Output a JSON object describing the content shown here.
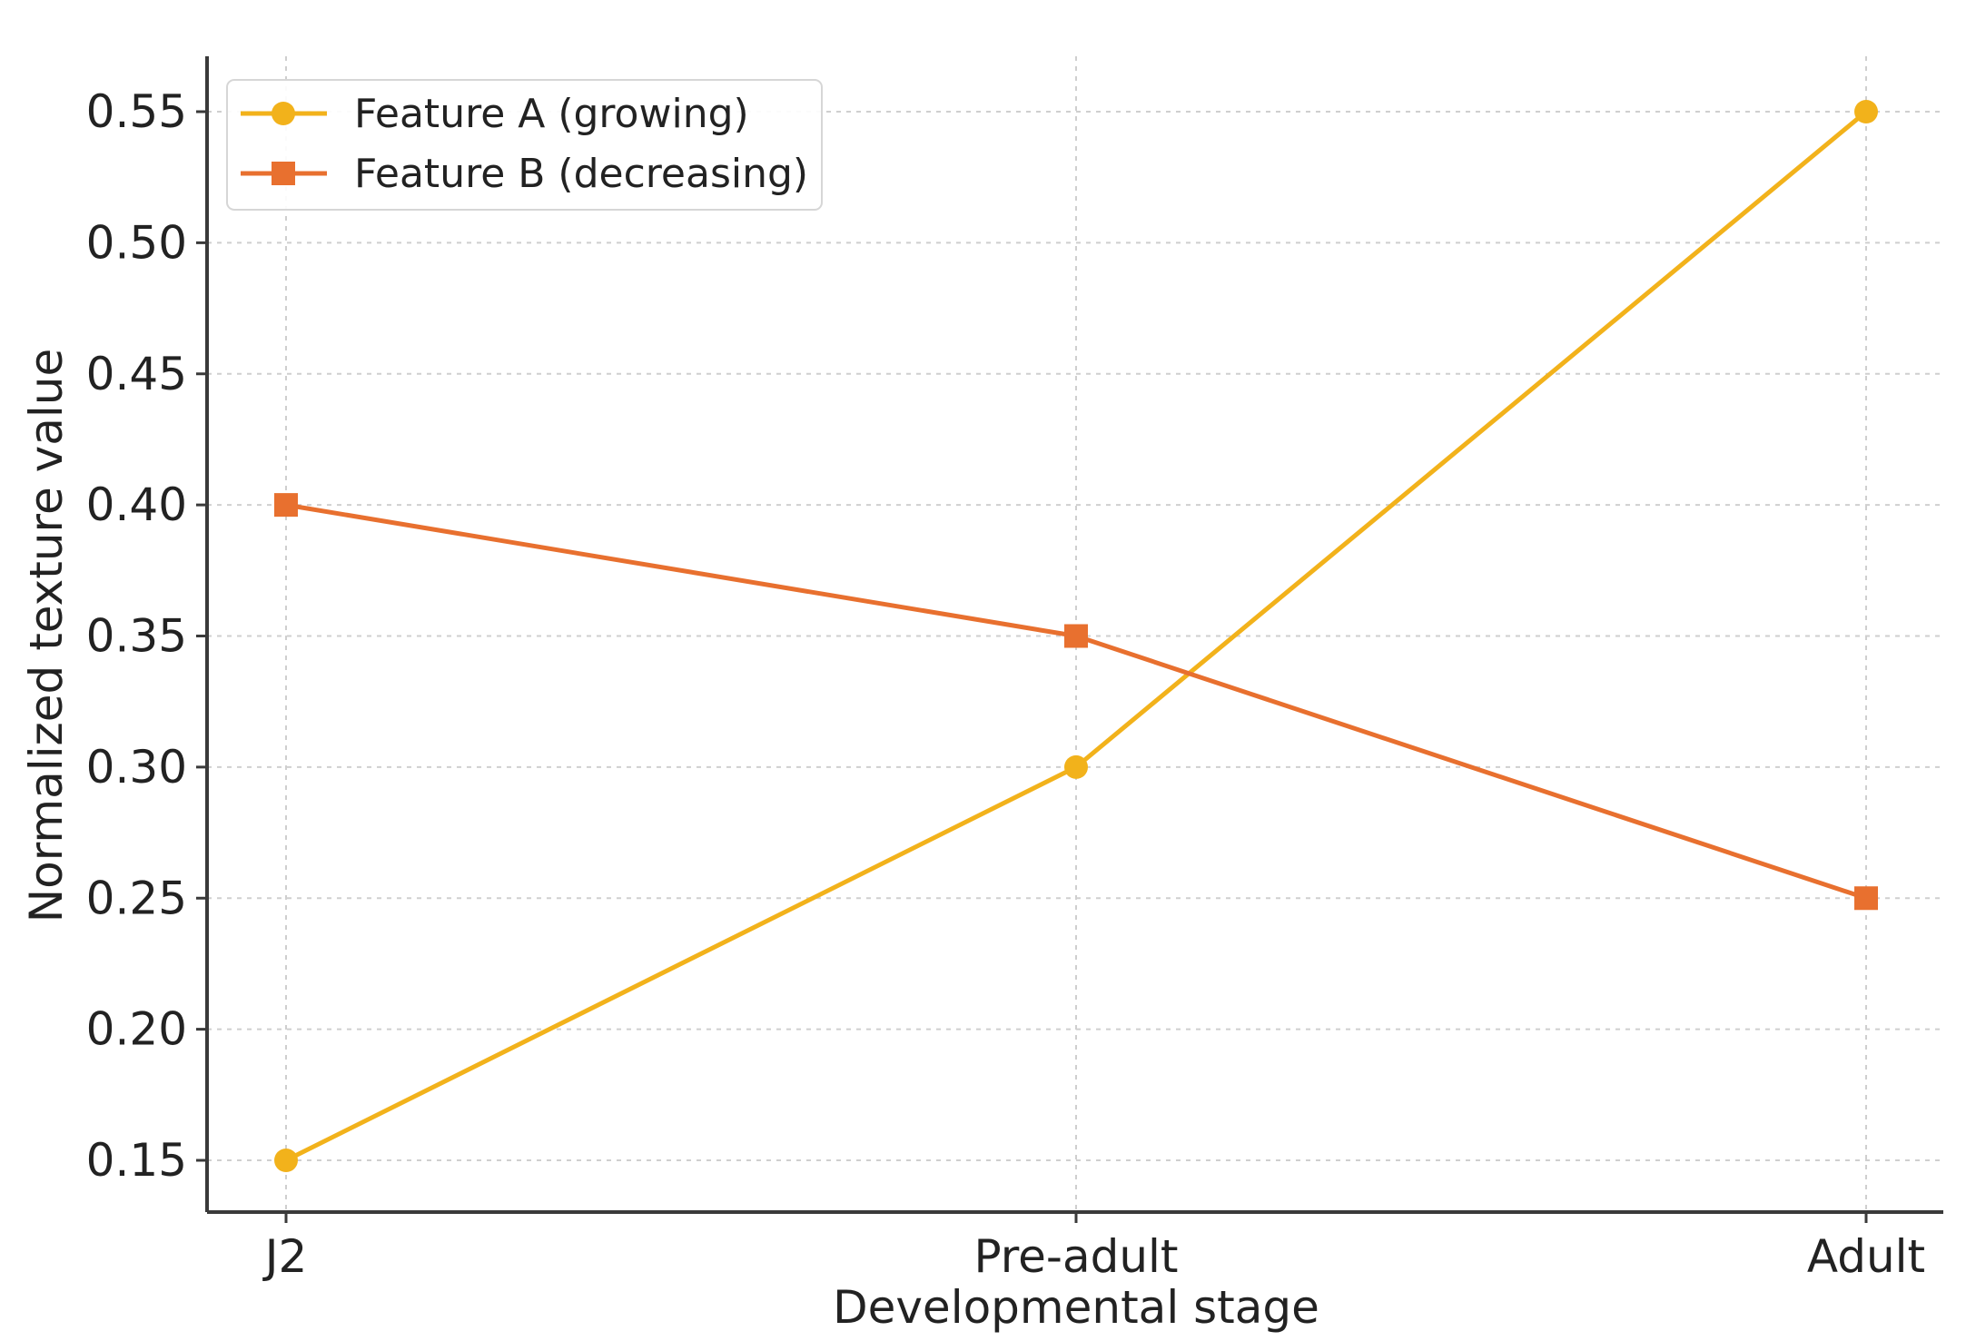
{
  "chart_data": {
    "type": "line",
    "title": "",
    "xlabel": "Developmental stage",
    "ylabel": "Normalized texture value",
    "categories": [
      "J2",
      "Pre-adult",
      "Adult"
    ],
    "ylim": [
      0.13,
      0.57
    ],
    "yticks": [
      0.15,
      0.2,
      0.25,
      0.3,
      0.35,
      0.4,
      0.45,
      0.5,
      0.55
    ],
    "ytick_labels": [
      "0.15",
      "0.20",
      "0.25",
      "0.30",
      "0.35",
      "0.40",
      "0.45",
      "0.50",
      "0.55"
    ],
    "grid": true,
    "legend_position": "top-left",
    "series": [
      {
        "name": "Feature A (growing)",
        "values": [
          0.15,
          0.3,
          0.55
        ],
        "color": "#F2B21B",
        "marker": "circle"
      },
      {
        "name": "Feature B (decreasing)",
        "values": [
          0.4,
          0.35,
          0.25
        ],
        "color": "#E8702F",
        "marker": "square"
      }
    ]
  }
}
